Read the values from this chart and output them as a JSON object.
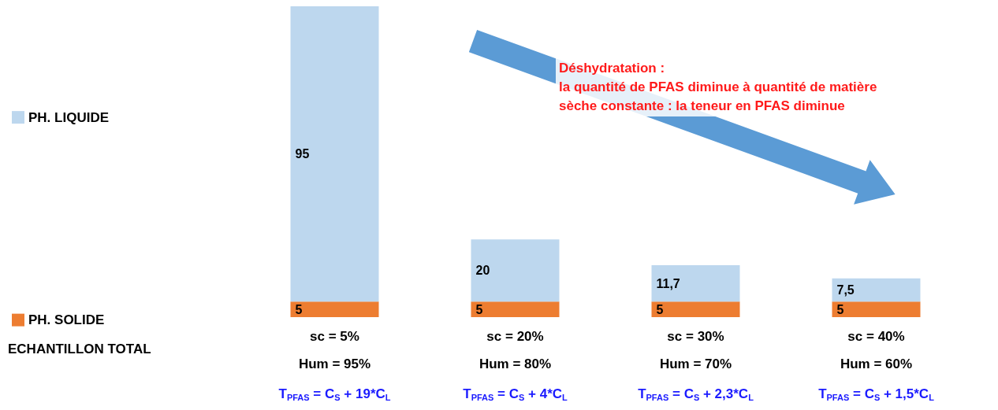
{
  "chart_data": {
    "type": "bar",
    "stacked": true,
    "legend": "left",
    "categories": [
      "sc = 5%",
      "sc = 20%",
      "sc = 30%",
      "sc = 40%"
    ],
    "series": [
      {
        "name": "PH. SOLIDE",
        "color": "#ed7d31",
        "values": [
          5,
          5,
          5,
          5
        ],
        "value_labels": [
          "5",
          "5",
          "5",
          "5"
        ]
      },
      {
        "name": "PH. LIQUIDE",
        "color": "#bdd7ee",
        "values": [
          95,
          20,
          11.7,
          7.5
        ],
        "value_labels": [
          "95",
          "20",
          "11,7",
          "7,5"
        ]
      }
    ],
    "annotations": [
      "ECHANTILLON TOTAL",
      "Déshydratation :\nla quantité de PFAS diminue à quantité de matière\nsèche constante : la teneur en PFAS diminue",
      "Hum = 95%",
      "Hum = 80%",
      "Hum = 70%",
      "Hum = 60%",
      "T$_{PFAS}$ = C$_{S}$ + 19*C$_{L}$",
      "T$_{PFAS}$ = C$_{S}$ + 4*C$_{L}$",
      "T$_{PFAS}$ = C$_{S}$ + 2,3*C$_{L}$",
      "T$_{PFAS}$ = C$_{S}$ + 1,5*C$_{L}$"
    ]
  }
}
